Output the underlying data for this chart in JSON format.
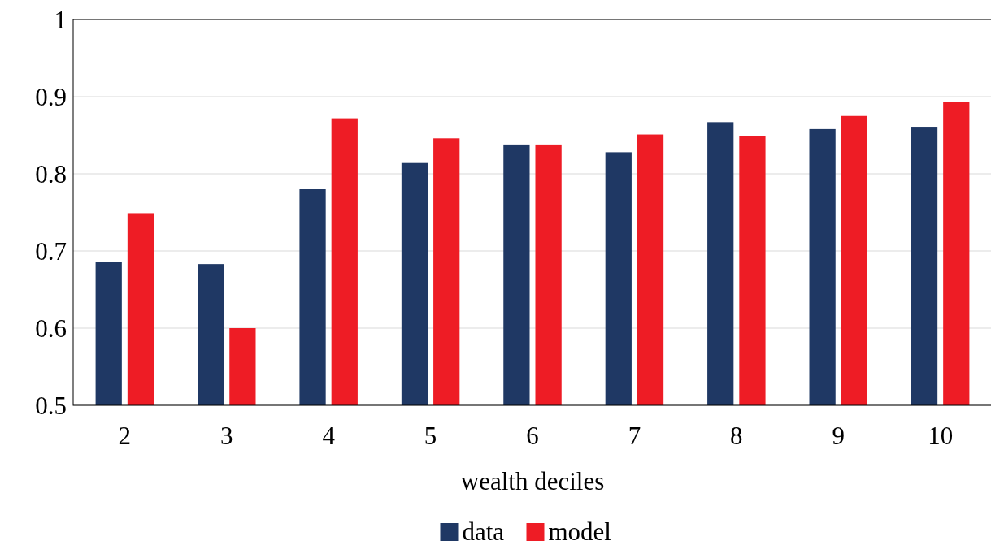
{
  "chart_data": {
    "type": "bar",
    "xlabel": "wealth deciles",
    "categories": [
      "2",
      "3",
      "4",
      "5",
      "6",
      "7",
      "8",
      "9",
      "10"
    ],
    "series": [
      {
        "name": "data",
        "color": "#1f3864",
        "values": [
          0.686,
          0.683,
          0.78,
          0.814,
          0.838,
          0.828,
          0.867,
          0.858,
          0.861
        ]
      },
      {
        "name": "model",
        "color": "#ee1c25",
        "values": [
          0.749,
          0.6,
          0.872,
          0.846,
          0.838,
          0.851,
          0.849,
          0.875,
          0.893
        ]
      }
    ],
    "ylim": [
      0.5,
      1
    ],
    "yticks": [
      0.5,
      0.6,
      0.7,
      0.8,
      0.9,
      1
    ],
    "grid": "y",
    "legend": "bottom"
  }
}
